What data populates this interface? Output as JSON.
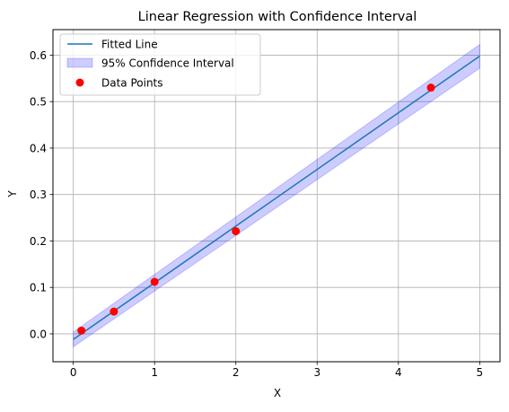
{
  "chart_data": {
    "type": "line",
    "title": "Linear Regression with Confidence Interval",
    "xlabel": "X",
    "ylabel": "Y",
    "xlim": [
      -0.25,
      5.25
    ],
    "ylim": [
      -0.06,
      0.655
    ],
    "xticks": [
      0,
      1,
      2,
      3,
      4,
      5
    ],
    "yticks": [
      0.0,
      0.1,
      0.2,
      0.3,
      0.4,
      0.5,
      0.6
    ],
    "xtick_labels": [
      "0",
      "1",
      "2",
      "3",
      "4",
      "5"
    ],
    "ytick_labels": [
      "0.0",
      "0.1",
      "0.2",
      "0.3",
      "0.4",
      "0.5",
      "0.6"
    ],
    "grid": true,
    "legend_position": "top-left",
    "series": [
      {
        "name": "Fitted Line",
        "kind": "line",
        "color": "#1f77b4",
        "x": [
          0,
          5
        ],
        "y": [
          -0.012,
          0.598
        ]
      },
      {
        "name": "95% Confidence Interval",
        "kind": "band",
        "color": "#0000ff",
        "x": [
          0,
          5
        ],
        "y_lower": [
          -0.028,
          0.572
        ],
        "y_upper": [
          0.004,
          0.623
        ]
      },
      {
        "name": "Data Points",
        "kind": "scatter",
        "color": "#ff0000",
        "x": [
          0.1,
          0.5,
          1.0,
          2.0,
          4.4
        ],
        "y": [
          0.007,
          0.048,
          0.112,
          0.221,
          0.53
        ]
      }
    ]
  }
}
